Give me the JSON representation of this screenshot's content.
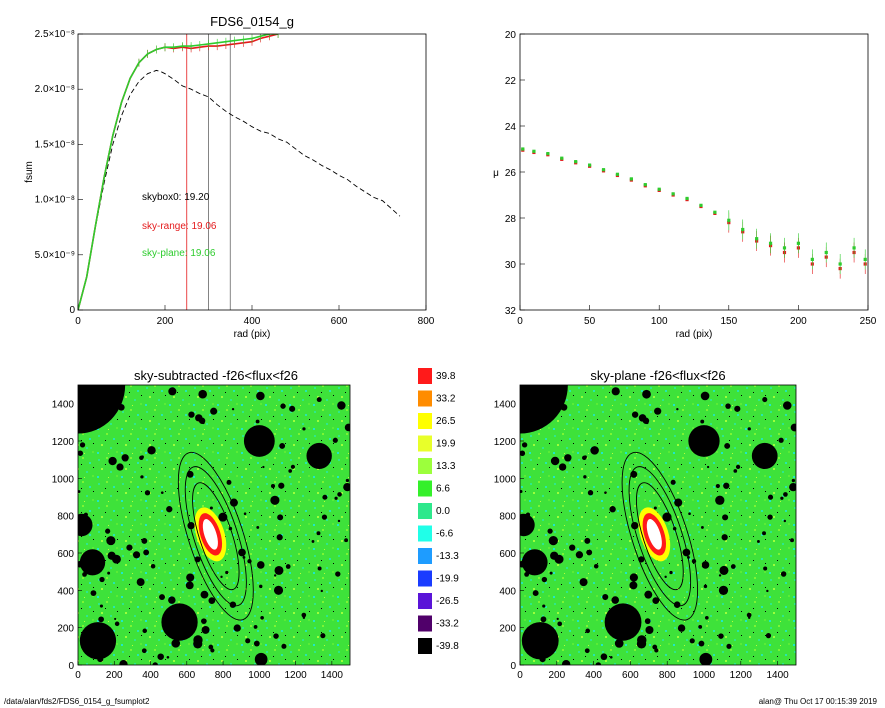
{
  "chart_data": [
    {
      "type": "line",
      "title": "FDS6_0154_g",
      "xlabel": "rad (pix)",
      "ylabel": "fsum",
      "xlim": [
        0,
        800
      ],
      "ylim": [
        0,
        2.5e-08
      ],
      "xticks": [
        "0",
        "200",
        "400",
        "600",
        "800"
      ],
      "yticks": [
        "0",
        "5.0×10⁻⁹",
        "1.0×10⁻⁸",
        "1.5×10⁻⁸",
        "2.0×10⁻⁸",
        "2.5×10⁻⁸"
      ],
      "ytick_values": [
        0,
        5e-09,
        1e-08,
        1.5e-08,
        2e-08,
        2.5e-08
      ],
      "annotations": [
        {
          "text": "skybox0: 19.20",
          "color": "#000000"
        },
        {
          "text": "sky-range: 19.06",
          "color": "#e41a1c"
        },
        {
          "text": "sky-plane: 19.06",
          "color": "#2ecc2e"
        }
      ],
      "vlines": [
        {
          "x": 250,
          "color": "#e41a1c"
        },
        {
          "x": 300,
          "color": "#666666"
        },
        {
          "x": 350,
          "color": "#666666"
        }
      ],
      "series": [
        {
          "name": "skybox0",
          "style": "dashed",
          "color": "#000000",
          "x": [
            0,
            20,
            40,
            60,
            80,
            100,
            120,
            140,
            160,
            180,
            190,
            200,
            220,
            240,
            260,
            280,
            300,
            320,
            340,
            360,
            380,
            400,
            420,
            440,
            460,
            480,
            500,
            520,
            540,
            560,
            580,
            600,
            620,
            640,
            660,
            680,
            700,
            720,
            740
          ],
          "y": [
            0,
            3e-09,
            7.5e-09,
            1.15e-08,
            1.5e-08,
            1.76e-08,
            1.95e-08,
            2.07e-08,
            2.14e-08,
            2.17e-08,
            2.16e-08,
            2.14e-08,
            2.09e-08,
            2.03e-08,
            2e-08,
            1.96e-08,
            1.93e-08,
            1.86e-08,
            1.8e-08,
            1.75e-08,
            1.71e-08,
            1.66e-08,
            1.62e-08,
            1.6e-08,
            1.55e-08,
            1.52e-08,
            1.46e-08,
            1.4e-08,
            1.36e-08,
            1.31e-08,
            1.27e-08,
            1.22e-08,
            1.18e-08,
            1.12e-08,
            1.07e-08,
            1.02e-08,
            9.9e-09,
            9.2e-09,
            8.5e-09
          ]
        },
        {
          "name": "sky-range",
          "style": "solid",
          "color": "#e41a1c",
          "x": [
            0,
            20,
            40,
            60,
            80,
            100,
            120,
            140,
            160,
            180,
            200,
            220,
            240,
            260,
            280,
            300,
            320,
            340,
            360,
            380,
            400,
            420,
            440,
            460
          ],
          "y": [
            0,
            3e-09,
            7.6e-09,
            1.2e-08,
            1.58e-08,
            1.88e-08,
            2.1e-08,
            2.24e-08,
            2.32e-08,
            2.36e-08,
            2.38e-08,
            2.37e-08,
            2.38e-08,
            2.37e-08,
            2.38e-08,
            2.39e-08,
            2.39e-08,
            2.4e-08,
            2.41e-08,
            2.42e-08,
            2.43e-08,
            2.46e-08,
            2.48e-08,
            2.5e-08
          ]
        },
        {
          "name": "sky-plane",
          "style": "solid",
          "color": "#2ecc2e",
          "x": [
            0,
            20,
            40,
            60,
            80,
            100,
            120,
            140,
            160,
            180,
            200,
            220,
            240,
            260,
            280,
            300,
            320,
            340,
            360,
            380,
            400,
            420,
            440,
            460
          ],
          "y": [
            0,
            3e-09,
            7.6e-09,
            1.2e-08,
            1.58e-08,
            1.88e-08,
            2.1e-08,
            2.24e-08,
            2.32e-08,
            2.36e-08,
            2.38e-08,
            2.38e-08,
            2.39e-08,
            2.39e-08,
            2.4e-08,
            2.41e-08,
            2.42e-08,
            2.43e-08,
            2.44e-08,
            2.45e-08,
            2.46e-08,
            2.48e-08,
            2.5e-08,
            2.5e-08
          ]
        }
      ]
    },
    {
      "type": "scatter",
      "title": "",
      "xlabel": "rad (pix)",
      "ylabel": "μ",
      "xlim": [
        0,
        250
      ],
      "ylim": [
        32,
        20
      ],
      "y_inverted": true,
      "xticks": [
        "0",
        "50",
        "100",
        "150",
        "200",
        "250"
      ],
      "yticks": [
        "20",
        "22",
        "24",
        "26",
        "28",
        "30",
        "32"
      ],
      "series": [
        {
          "name": "sky-range",
          "color": "#e41a1c",
          "x": [
            2,
            10,
            20,
            30,
            40,
            50,
            60,
            70,
            80,
            90,
            100,
            110,
            120,
            130,
            140,
            150,
            160,
            170,
            180,
            190,
            200,
            210,
            220,
            230,
            240,
            248
          ],
          "y": [
            25.05,
            25.15,
            25.25,
            25.45,
            25.6,
            25.75,
            25.95,
            26.15,
            26.35,
            26.6,
            26.8,
            27.0,
            27.2,
            27.5,
            27.8,
            28.2,
            28.6,
            29.0,
            29.2,
            29.5,
            29.3,
            30.0,
            29.7,
            30.2,
            29.5,
            30.0
          ]
        },
        {
          "name": "sky-plane",
          "color": "#2ecc2e",
          "x": [
            2,
            10,
            20,
            30,
            40,
            50,
            60,
            70,
            80,
            90,
            100,
            110,
            120,
            130,
            140,
            150,
            160,
            170,
            180,
            190,
            200,
            210,
            220,
            230,
            240,
            248
          ],
          "y": [
            25.0,
            25.1,
            25.2,
            25.4,
            25.55,
            25.7,
            25.9,
            26.1,
            26.3,
            26.55,
            26.75,
            26.95,
            27.15,
            27.45,
            27.75,
            28.1,
            28.5,
            28.9,
            29.1,
            29.3,
            29.1,
            29.8,
            29.5,
            30.0,
            29.3,
            29.8
          ]
        }
      ]
    },
    {
      "type": "heatmap",
      "title": "sky-subtracted -f26<flux<f26",
      "xticks": [
        "0",
        "200",
        "400",
        "600",
        "800",
        "1000",
        "1200",
        "1400"
      ],
      "yticks": [
        "0",
        "200",
        "400",
        "600",
        "800",
        "1000",
        "1200",
        "1400"
      ],
      "xlim": [
        0,
        1500
      ],
      "ylim": [
        0,
        1500
      ],
      "masks": [
        {
          "x": 0,
          "y": 1500,
          "r": 260
        },
        {
          "x": 1000,
          "y": 1200,
          "r": 85
        },
        {
          "x": 1330,
          "y": 1120,
          "r": 70
        },
        {
          "x": 20,
          "y": 750,
          "r": 60
        },
        {
          "x": 80,
          "y": 550,
          "r": 70
        },
        {
          "x": 560,
          "y": 230,
          "r": 100
        },
        {
          "x": 110,
          "y": 130,
          "r": 100
        },
        {
          "x": 1010,
          "y": 30,
          "r": 35
        },
        {
          "x": 860,
          "y": 870,
          "r": 22
        },
        {
          "x": 260,
          "y": 1110,
          "r": 20
        }
      ],
      "ellipses": [
        {
          "x": 760,
          "y": 690,
          "rx": 150,
          "ry": 470,
          "angle": -18
        },
        {
          "x": 760,
          "y": 690,
          "rx": 120,
          "ry": 390,
          "angle": -18
        },
        {
          "x": 760,
          "y": 690,
          "rx": 90,
          "ry": 300,
          "angle": -18
        }
      ]
    },
    {
      "type": "heatmap",
      "title": "sky-plane -f26<flux<f26",
      "xticks": [
        "0",
        "200",
        "400",
        "600",
        "800",
        "1000",
        "1200",
        "1400"
      ],
      "yticks": [
        "0",
        "200",
        "400",
        "600",
        "800",
        "1000",
        "1200",
        "1400"
      ],
      "xlim": [
        0,
        1500
      ],
      "ylim": [
        0,
        1500
      ]
    }
  ],
  "colorbar": {
    "labels": [
      "39.8",
      "33.2",
      "26.5",
      "19.9",
      "13.3",
      "6.6",
      "0.0",
      "-6.6",
      "-13.3",
      "-19.9",
      "-26.5",
      "-33.2",
      "-39.8"
    ],
    "colors": [
      "#ff1a1a",
      "#ff8c00",
      "#ffff00",
      "#e8ff2a",
      "#9cff3c",
      "#34f02a",
      "#2ee88c",
      "#20ffe8",
      "#1e9cff",
      "#1a3cff",
      "#5a14d8",
      "#50006a",
      "#000000"
    ]
  },
  "footer": {
    "left": "/data/alan/fds2/FDS6_0154_g_fsumplot2",
    "right": "alan@  Thu Oct 17 00:15:39 2019"
  }
}
